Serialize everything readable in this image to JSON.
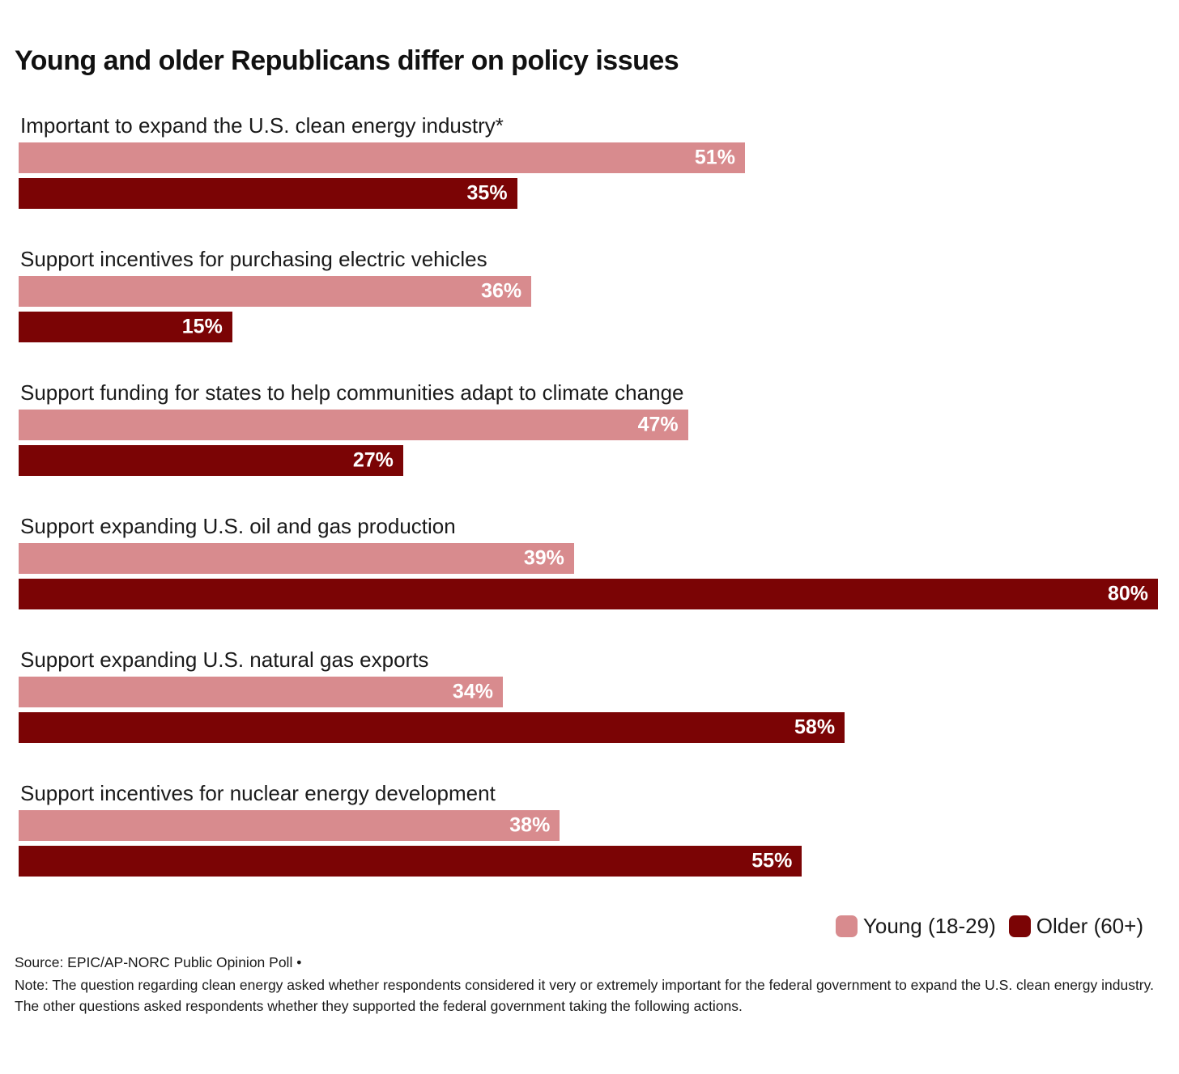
{
  "title": "Young and older Republicans differ on policy issues",
  "colors": {
    "young": "#d88b8e",
    "older": "#7b0405",
    "value_label": "#ffffff",
    "text": "#1a1a1a"
  },
  "chart_data": {
    "type": "bar",
    "orientation": "horizontal",
    "value_suffix": "%",
    "scale_max": 80,
    "grid": false,
    "legend_position": "bottom-right",
    "categories": [
      "Important to expand the U.S. clean energy industry*",
      "Support incentives for purchasing electric vehicles",
      "Support funding for states to help communities adapt to climate change",
      "Support expanding U.S. oil and gas production",
      "Support expanding U.S. natural gas exports",
      "Support incentives for nuclear energy development"
    ],
    "series": [
      {
        "name": "Young (18-29)",
        "color": "#d88b8e",
        "values": [
          51,
          36,
          47,
          39,
          34,
          38
        ]
      },
      {
        "name": "Older (60+)",
        "color": "#7b0405",
        "values": [
          35,
          15,
          27,
          80,
          58,
          55
        ]
      }
    ]
  },
  "legend": {
    "items": [
      {
        "label": "Young (18-29)",
        "color": "#d88b8e"
      },
      {
        "label": "Older (60+)",
        "color": "#7b0405"
      }
    ]
  },
  "footer": {
    "source": "Source: EPIC/AP-NORC Public Opinion Poll •",
    "note": "Note: The question regarding clean energy asked whether respondents considered it very or extremely important for the federal government to expand the U.S. clean energy industry. The other questions asked respondents whether they supported the federal government taking the following actions."
  }
}
